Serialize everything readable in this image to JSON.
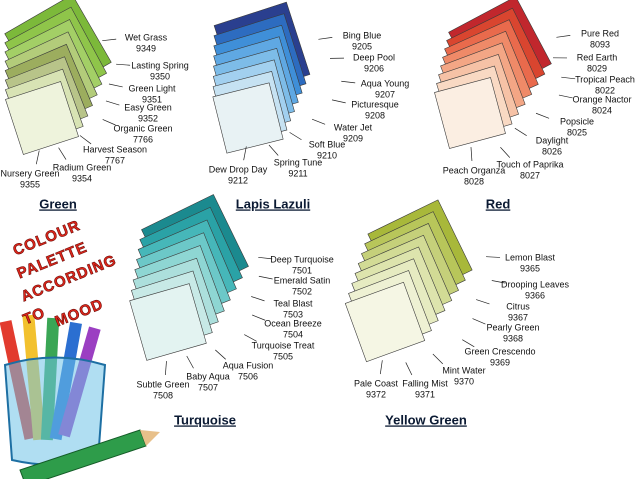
{
  "fans": [
    {
      "title": "Green",
      "swatches": [
        {
          "name": "Wet Grass",
          "code": "9349",
          "color": "#7cb93a"
        },
        {
          "name": "Lasting Spring",
          "code": "9350",
          "color": "#8fc54a"
        },
        {
          "name": "Green Light",
          "code": "9351",
          "color": "#a3cf66"
        },
        {
          "name": "Easy Green",
          "code": "9352",
          "color": "#b3cc7a"
        },
        {
          "name": "Organic Green",
          "code": "7766",
          "color": "#9cad5e"
        },
        {
          "name": "Harvest Season",
          "code": "7767",
          "color": "#b8c489"
        },
        {
          "name": "Radium Green",
          "code": "9354",
          "color": "#d8e3b4"
        },
        {
          "name": "Nursery Green",
          "code": "9355",
          "color": "#eef3dc"
        }
      ]
    },
    {
      "title": "Lapis Lazuli",
      "swatches": [
        {
          "name": "Bing Blue",
          "code": "9205",
          "color": "#2a3f8f"
        },
        {
          "name": "Deep Pool",
          "code": "9206",
          "color": "#2d6cc0"
        },
        {
          "name": "Aqua Young",
          "code": "9207",
          "color": "#3f8fd8"
        },
        {
          "name": "Picturesque",
          "code": "9208",
          "color": "#5fa8e3"
        },
        {
          "name": "Water Jet",
          "code": "9209",
          "color": "#7dbce8"
        },
        {
          "name": "Soft Blue",
          "code": "9210",
          "color": "#a2d0ef"
        },
        {
          "name": "Spring Tune",
          "code": "9211",
          "color": "#c6e2f2"
        },
        {
          "name": "Dew Drop Day",
          "code": "9212",
          "color": "#e8f2f4"
        }
      ]
    },
    {
      "title": "Red",
      "swatches": [
        {
          "name": "Pure Red",
          "code": "8093",
          "color": "#c1272d"
        },
        {
          "name": "Red Earth",
          "code": "8029",
          "color": "#d9452f"
        },
        {
          "name": "Tropical Peach",
          "code": "8022",
          "color": "#e96a4c"
        },
        {
          "name": "Orange Nactor",
          "code": "8024",
          "color": "#ef8a68"
        },
        {
          "name": "Popsicle",
          "code": "8025",
          "color": "#f3a685"
        },
        {
          "name": "Daylight",
          "code": "8026",
          "color": "#f6c2a6"
        },
        {
          "name": "Touch of Paprika",
          "code": "8027",
          "color": "#f9d9c3"
        },
        {
          "name": "Peach Organza",
          "code": "8028",
          "color": "#fbeee2"
        }
      ]
    },
    {
      "title": "Turquoise",
      "swatches": [
        {
          "name": "Deep Turquoise",
          "code": "7501",
          "color": "#1b8a8f"
        },
        {
          "name": "Emerald Satin",
          "code": "7502",
          "color": "#2aa2a6"
        },
        {
          "name": "Teal Blast",
          "code": "7503",
          "color": "#46b7b9"
        },
        {
          "name": "Ocean Breeze",
          "code": "7504",
          "color": "#6cc8c8"
        },
        {
          "name": "Turquoise Treat",
          "code": "7505",
          "color": "#8ed6d3"
        },
        {
          "name": "Aqua Fusion",
          "code": "7506",
          "color": "#acdfdc"
        },
        {
          "name": "Baby Aqua",
          "code": "7507",
          "color": "#c7e9e6"
        },
        {
          "name": "Subtle Green",
          "code": "7508",
          "color": "#e3f3f1"
        }
      ]
    },
    {
      "title": "Yellow Green",
      "swatches": [
        {
          "name": "Lemon Blast",
          "code": "9365",
          "color": "#a8b83a"
        },
        {
          "name": "Drooping Leaves",
          "code": "9366",
          "color": "#b8c65a"
        },
        {
          "name": "Citrus",
          "code": "9367",
          "color": "#c5d07a"
        },
        {
          "name": "Pearly Green",
          "code": "9368",
          "color": "#d2db95"
        },
        {
          "name": "Green Crescendo",
          "code": "9369",
          "color": "#dde4ad"
        },
        {
          "name": "Mint Water",
          "code": "9370",
          "color": "#e6ebc1"
        },
        {
          "name": "Falling Mist",
          "code": "9371",
          "color": "#eef1d3"
        },
        {
          "name": "Pale Coast",
          "code": "9372",
          "color": "#f5f6e4"
        }
      ]
    }
  ],
  "mood_text": [
    "COLOUR",
    "PALETTE",
    "ACCORDING",
    "TO",
    "MOOD"
  ]
}
